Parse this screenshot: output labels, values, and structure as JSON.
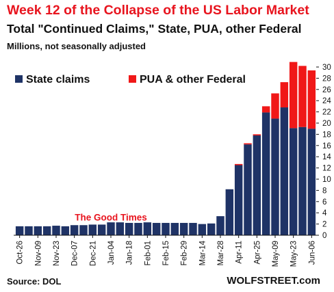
{
  "header": {
    "title": "Week 12 of the Collapse of the US Labor Market",
    "subtitle": "Total \"Continued Claims,\" State, PUA, other Federal",
    "units": "Millions, not seasonally adjusted"
  },
  "footer": {
    "source": "Source: DOL",
    "brand": "WOLFSTREET.com"
  },
  "colors": {
    "state": "#1f3366",
    "federal": "#f01818",
    "annotation": "#e8141e"
  },
  "chart_data": {
    "type": "bar",
    "stacked": true,
    "title": "Total \"Continued Claims,\" State, PUA, other Federal",
    "xlabel": "",
    "ylabel": "",
    "ylim": [
      0,
      30
    ],
    "yticks": [
      0,
      2,
      4,
      6,
      8,
      10,
      12,
      14,
      16,
      18,
      20,
      22,
      24,
      26,
      28,
      30
    ],
    "y_axis_side": "right",
    "grid": false,
    "legend": "top-left",
    "categories": [
      "Oct-26",
      "Nov-02",
      "Nov-09",
      "Nov-16",
      "Nov-23",
      "Nov-30",
      "Dec-07",
      "Dec-14",
      "Dec-21",
      "Dec-28",
      "Jan-04",
      "Jan-11",
      "Jan-18",
      "Jan-25",
      "Feb-01",
      "Feb-08",
      "Feb-15",
      "Feb-22",
      "Feb-29",
      "Mar-07",
      "Mar-14",
      "Mar-21",
      "Mar-28",
      "Apr-04",
      "Apr-11",
      "Apr-18",
      "Apr-25",
      "May-02",
      "May-09",
      "May-16",
      "May-23",
      "May-30",
      "Jun-06"
    ],
    "tick_labels": [
      "Oct-26",
      "Nov-09",
      "Nov-23",
      "Dec-07",
      "Dec-21",
      "Jan-04",
      "Jan-18",
      "Feb-01",
      "Feb-15",
      "Feb-29",
      "Mar-14",
      "Mar-28",
      "Apr-11",
      "Apr-25",
      "May-09",
      "May-23",
      "Jun-06"
    ],
    "series": [
      {
        "name": "State claims",
        "values": [
          1.6,
          1.6,
          1.6,
          1.6,
          1.7,
          1.6,
          1.8,
          1.8,
          1.9,
          1.9,
          2.3,
          2.3,
          2.2,
          2.2,
          2.3,
          2.2,
          2.2,
          2.2,
          2.2,
          2.2,
          2.0,
          2.1,
          3.4,
          8.2,
          12.5,
          16.2,
          17.8,
          21.9,
          20.8,
          22.8,
          19.1,
          19.3,
          19.0
        ]
      },
      {
        "name": "PUA & other Federal",
        "values": [
          0,
          0,
          0,
          0,
          0,
          0,
          0,
          0,
          0,
          0,
          0,
          0,
          0,
          0,
          0,
          0,
          0,
          0,
          0,
          0,
          0,
          0,
          0,
          0,
          0.2,
          0.2,
          0.2,
          1.1,
          4.5,
          4.5,
          11.8,
          10.9,
          10.4
        ]
      }
    ],
    "annotations": [
      {
        "text": "The Good Times",
        "category": "Jan-04",
        "value": 3.1
      }
    ]
  }
}
